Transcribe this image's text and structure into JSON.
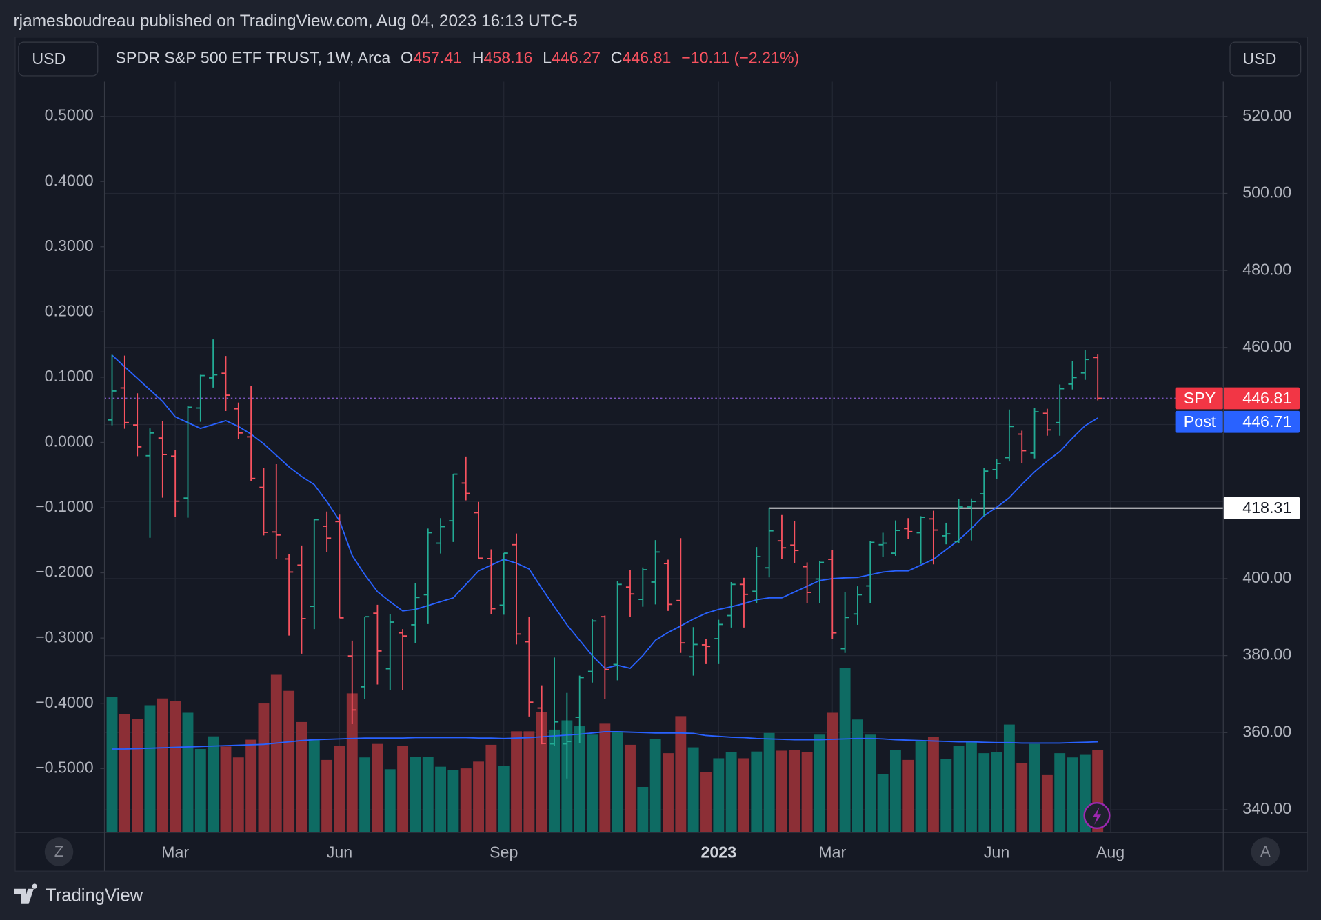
{
  "chart_data": {
    "type": "ohlc",
    "header": "rjamesboudreau published on TradingView.com, Aug 04, 2023 16:13 UTC-5",
    "currency": "USD",
    "legend": {
      "name": "SPDR S&P 500 ETF TRUST, 1W, Arca",
      "fields": [
        "O",
        "H",
        "L",
        "C"
      ],
      "change": "−10.11 (−2.21%)"
    },
    "last_label": "SPY",
    "post": {
      "name": "Post",
      "value": 446.71
    },
    "hline": {
      "value": 418.31,
      "start": 52
    },
    "buttons": [
      "Z",
      "A"
    ],
    "brand": "TradingView",
    "up_color": "#22ab94",
    "down_color": "#f7525f",
    "up_volume_color": "#0e6b63",
    "down_volume_color": "#8c2f36",
    "ma_color": "#2962ff",
    "open": [
      441.2,
      449.5,
      439.9,
      431.9,
      436.5,
      431.8,
      420.9,
      444.3,
      452.1,
      453.3,
      444.1,
      436.8,
      423.7,
      412.1,
      405.1,
      403.5,
      392.8,
      413.6,
      414.8,
      379.9,
      371.9,
      391,
      376.6,
      385.9,
      388,
      395.8,
      409.2,
      415,
      424.8,
      417.1,
      405.2,
      393.1,
      408.8,
      383.6,
      366.4,
      357.1,
      357.1,
      364,
      375.9,
      390.1,
      377.7,
      397.8,
      394.6,
      399.1,
      403.9,
      394.3,
      379.7,
      382.8,
      384.4,
      390.4,
      398.5,
      396.7,
      402.8,
      409.8,
      408.7,
      403.1,
      399.9,
      405,
      381.8,
      390.8,
      398.1,
      408.8,
      406.6,
      413,
      411.9,
      415.5,
      411.1,
      409.6,
      418.6,
      422,
      428.3,
      431.4,
      437.5,
      432.6,
      442.9,
      440.5,
      450.5,
      453.4,
      457.41
    ],
    "high": [
      458.1,
      457.9,
      448.1,
      439,
      441,
      433.4,
      444.9,
      452.9,
      462.1,
      457.8,
      445.7,
      450,
      428.7,
      429.7,
      406.4,
      408.6,
      415.4,
      417.4,
      416.6,
      383.9,
      390.1,
      393.2,
      390.7,
      386.9,
      398.8,
      413,
      415.7,
      427.2,
      431.7,
      419.9,
      407.6,
      406.6,
      411.7,
      390.1,
      372.3,
      379.5,
      370.3,
      374.8,
      389.5,
      390.4,
      399.4,
      402.3,
      402.9,
      410,
      404.9,
      410.5,
      387.4,
      384.4,
      389.3,
      399.1,
      400.2,
      408.2,
      418.3,
      416.5,
      415,
      404.2,
      404.5,
      407.5,
      396.5,
      398,
      409.7,
      411.9,
      415.1,
      415.7,
      416.2,
      417.6,
      414.5,
      420.7,
      420.8,
      428.7,
      431,
      443.9,
      438.4,
      444.3,
      444.1,
      450.4,
      456.4,
      459.4,
      458.16
    ],
    "low": [
      439.8,
      438.9,
      431.8,
      410.6,
      421,
      416,
      415.8,
      440.7,
      449.6,
      443.5,
      436.3,
      425.4,
      411.2,
      405,
      385.2,
      380.5,
      386.9,
      406.9,
      389.8,
      362.2,
      368.8,
      372.5,
      371,
      371,
      383.3,
      388.2,
      406.5,
      409.5,
      420.3,
      405.3,
      390.8,
      390.6,
      382.9,
      364.2,
      357,
      356.6,
      348.1,
      357.3,
      373,
      368.8,
      373.6,
      390,
      392.7,
      393.3,
      391.6,
      380.7,
      374.8,
      377.8,
      377.8,
      387.3,
      387.3,
      393.6,
      400.3,
      405,
      404,
      393.6,
      393.6,
      384.3,
      380.7,
      388,
      393.7,
      405.7,
      405.9,
      410.2,
      403.8,
      403.7,
      408.9,
      409.2,
      409.9,
      416.2,
      425.8,
      430.4,
      429.9,
      431.2,
      437.1,
      437.1,
      449.1,
      451.6,
      446.27
    ],
    "close": [
      448.7,
      440.5,
      434.2,
      437.8,
      432.2,
      420.1,
      444.5,
      452.7,
      452.9,
      447.6,
      437.8,
      426,
      412,
      411.3,
      401.7,
      389.6,
      415.3,
      410.5,
      389.8,
      365.9,
      390.1,
      381.2,
      388.7,
      385.1,
      395.1,
      411.9,
      413.5,
      427.1,
      422.1,
      405.3,
      392.2,
      406.6,
      385.6,
      367.9,
      357.2,
      362.8,
      357.7,
      374.3,
      389,
      376.4,
      398.5,
      396,
      402.3,
      406.9,
      393.3,
      383.3,
      382.9,
      382.4,
      388.1,
      398.5,
      395.9,
      405.7,
      412.4,
      408,
      407.3,
      396.4,
      404.2,
      385.9,
      389.9,
      395.8,
      409.4,
      409.2,
      412.5,
      412.2,
      415.9,
      412.6,
      411.6,
      418.6,
      420,
      427.9,
      429.9,
      439.5,
      433.2,
      443.3,
      438.6,
      449.3,
      452.2,
      456.9,
      446.81
    ],
    "ma": [
      458,
      455,
      452,
      449,
      446,
      442,
      440.5,
      439,
      440,
      441,
      439.5,
      437.5,
      435,
      432,
      429,
      426.5,
      424.4,
      420,
      415,
      406,
      401,
      396.6,
      394,
      391.6,
      392,
      393,
      394,
      395,
      398.5,
      402,
      403.5,
      405,
      404,
      402.5,
      397.5,
      392.7,
      388,
      384,
      380,
      376.7,
      377.5,
      376.7,
      380,
      384,
      386,
      387.7,
      389.5,
      391,
      392,
      392.7,
      393.5,
      394.5,
      395,
      395,
      396.5,
      398,
      399.5,
      400,
      400.2,
      400.3,
      401,
      401.7,
      402,
      402,
      403.5,
      405,
      407.5,
      410,
      413,
      416.3,
      418.5,
      421,
      424.5,
      427.7,
      430.5,
      433,
      436.5,
      439.7,
      441.7
    ],
    "volume": [
      644,
      560,
      540,
      604,
      636,
      624,
      568,
      396,
      456,
      408,
      356,
      440,
      612,
      748,
      672,
      524,
      444,
      344,
      412,
      660,
      356,
      420,
      300,
      412,
      360,
      360,
      312,
      296,
      304,
      336,
      416,
      316,
      480,
      480,
      572,
      488,
      532,
      504,
      464,
      516,
      480,
      416,
      216,
      444,
      376,
      552,
      404,
      288,
      352,
      380,
      352,
      384,
      472,
      388,
      392,
      380,
      464,
      568,
      780,
      536,
      464,
      276,
      392,
      344,
      432,
      452,
      348,
      412,
      428,
      376,
      380,
      512,
      328,
      420,
      272,
      376,
      356,
      368,
      392
    ],
    "volume_ma": [
      396,
      396,
      398,
      400,
      402,
      404,
      406,
      408,
      410,
      412,
      414,
      416,
      418,
      424,
      430,
      436,
      440,
      442,
      444,
      446,
      448,
      448,
      448,
      448,
      450,
      450,
      450,
      450,
      450,
      448,
      448,
      446,
      448,
      450,
      454,
      458,
      462,
      466,
      472,
      478,
      478,
      476,
      474,
      472,
      472,
      472,
      470,
      460,
      456,
      452,
      450,
      446,
      444,
      442,
      440,
      440,
      440,
      442,
      444,
      446,
      446,
      444,
      440,
      438,
      436,
      434,
      432,
      430,
      430,
      428,
      426,
      426,
      424,
      424,
      424,
      424,
      426,
      428,
      430
    ],
    "ylim": [
      334.1,
      529.0
    ],
    "yticks": [
      {
        "value": 520,
        "label": "520.00"
      },
      {
        "value": 500,
        "label": "500.00"
      },
      {
        "value": 480,
        "label": "480.00"
      },
      {
        "value": 460,
        "label": "460.00"
      },
      {
        "value": 400,
        "label": "400.00"
      },
      {
        "value": 380,
        "label": "380.00"
      },
      {
        "value": 360,
        "label": "360.00"
      },
      {
        "value": 340,
        "label": "340.00"
      }
    ],
    "grid_values": [
      520,
      500,
      480,
      460,
      440,
      420,
      400,
      380,
      360,
      340
    ],
    "left_lim": [
      -0.598,
      0.553
    ],
    "left_ticks": [
      {
        "value": 0.5,
        "label": "0.5000"
      },
      {
        "value": 0.4,
        "label": "0.4000"
      },
      {
        "value": 0.3,
        "label": "0.3000"
      },
      {
        "value": 0.2,
        "label": "0.2000"
      },
      {
        "value": 0.1,
        "label": "0.1000"
      },
      {
        "value": 0,
        "label": "0.0000"
      },
      {
        "value": -0.1,
        "label": "−0.1000"
      },
      {
        "value": -0.2,
        "label": "−0.2000"
      },
      {
        "value": -0.3,
        "label": "−0.3000"
      },
      {
        "value": -0.4,
        "label": "−0.4000"
      },
      {
        "value": -0.5,
        "label": "−0.5000"
      }
    ],
    "xticks": [
      {
        "value": 5,
        "label": "Mar"
      },
      {
        "value": 18,
        "label": "Jun"
      },
      {
        "value": 31,
        "label": "Sep"
      },
      {
        "value": 48,
        "label": "2023"
      },
      {
        "value": 57,
        "label": "Mar"
      },
      {
        "value": 70,
        "label": "Jun"
      },
      {
        "value": 79,
        "label": "Aug"
      }
    ],
    "grid": true
  }
}
